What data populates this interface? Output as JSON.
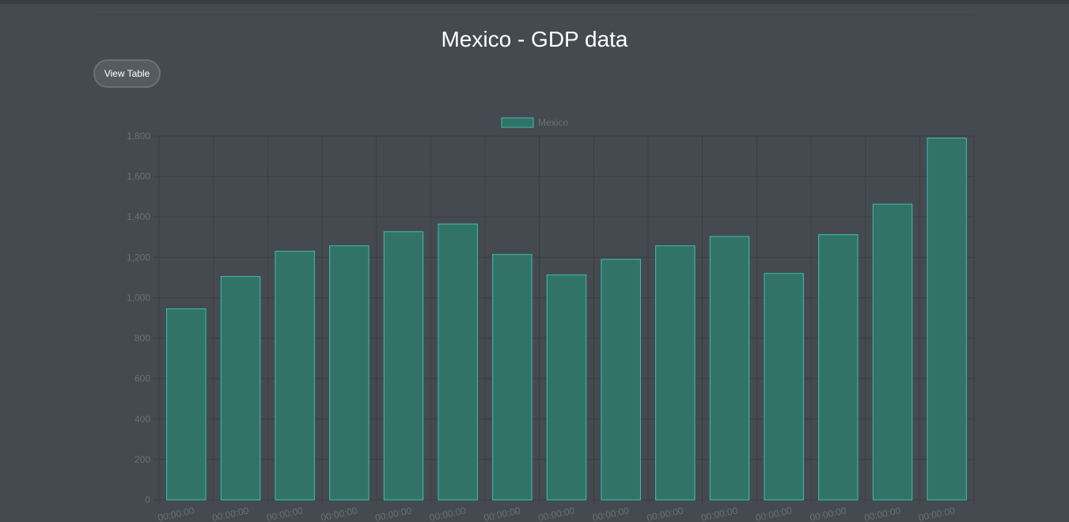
{
  "page": {
    "title": "Mexico - GDP data",
    "view_table_label": "View Table"
  },
  "colors": {
    "background": "#454a50",
    "bar_fill": "#327367",
    "bar_stroke": "#3bbfb0",
    "grid": "#3b3f44",
    "tick_text": "#6a6f74"
  },
  "chart_data": {
    "type": "bar",
    "legend": [
      "Mexico"
    ],
    "legend_position": "top-center",
    "grid": true,
    "ylim": [
      0,
      1800
    ],
    "yticks": [
      0,
      200,
      400,
      600,
      800,
      1000,
      1200,
      1400,
      1600,
      1800
    ],
    "ytick_labels": [
      "0",
      "200",
      "400",
      "600",
      "800",
      "1,000",
      "1,200",
      "1,400",
      "1,600",
      "1,800"
    ],
    "x_tick_label": "00:00:00",
    "series": [
      {
        "name": "Mexico",
        "values": [
          945,
          1105,
          1230,
          1257,
          1327,
          1365,
          1214,
          1113,
          1190,
          1257,
          1303,
          1120,
          1312,
          1463,
          1790
        ]
      }
    ]
  }
}
